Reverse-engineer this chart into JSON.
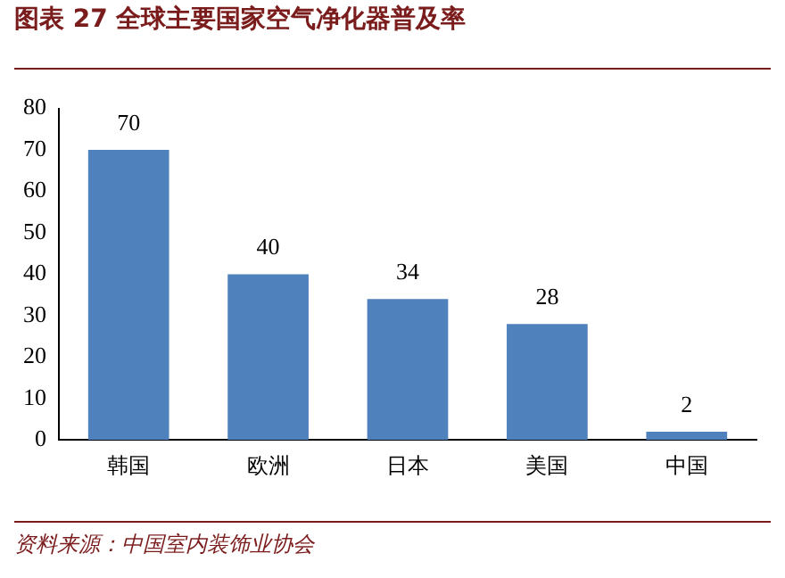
{
  "chart_data": {
    "type": "bar",
    "title": "图表 27 全球主要国家空气净化器普及率",
    "categories": [
      "韩国",
      "欧洲",
      "日本",
      "美国",
      "中国"
    ],
    "values": [
      70,
      40,
      34,
      28,
      2
    ],
    "color": "#4f81bd",
    "ylim": [
      0,
      80
    ],
    "yticks": [
      0,
      10,
      20,
      30,
      40,
      50,
      60,
      70,
      80
    ],
    "grid": false,
    "data_labels": true,
    "annotations": [
      "资料来源：中国室内装饰业协会"
    ]
  }
}
